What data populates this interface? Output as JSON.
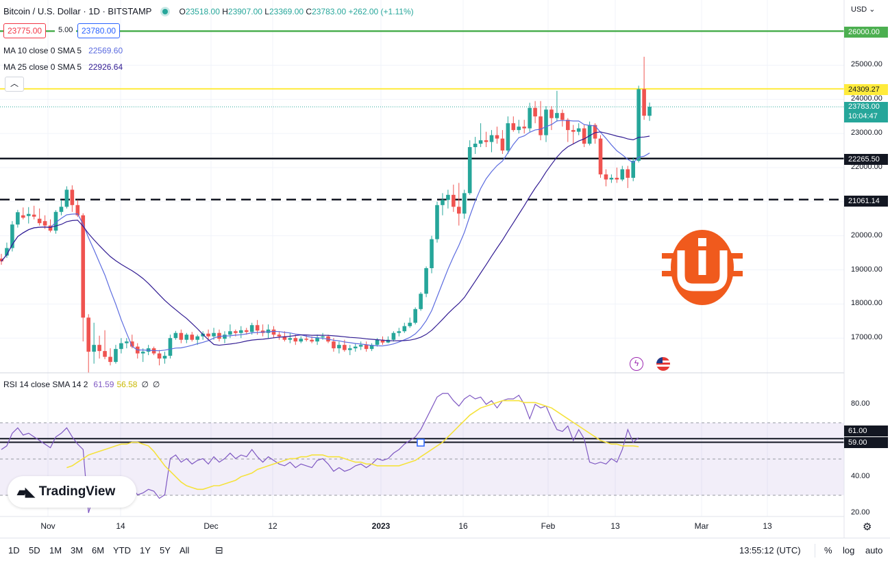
{
  "header": {
    "title": "Bitcoin / U.S. Dollar · 1D · BITSTAMP",
    "open_label": "O",
    "open": "23518.00",
    "high_label": "H",
    "high": "23907.00",
    "low_label": "L",
    "low": "23369.00",
    "close_label": "C",
    "close": "23783.00",
    "change": "+262.00 (+1.11%)"
  },
  "trade": {
    "sell": "23775.00",
    "spread": "5.00",
    "buy": "23780.00"
  },
  "indicators": {
    "ma10_label": "MA 10 close 0 SMA 5",
    "ma10_value": "22569.60",
    "ma25_label": "MA 25 close 0 SMA 5",
    "ma25_value": "22926.64",
    "rsi_label": "RSI 14 close SMA 14 2",
    "rsi_value": "61.59",
    "rsi_sma_value": "56.58",
    "rsi_extra1": "∅",
    "rsi_extra2": "∅"
  },
  "currency": "USD",
  "price_labels": {
    "level_26000": "26000.00",
    "level_24309": "24309.27",
    "last_price": "23783.00",
    "countdown": "10:04:47",
    "level_22265": "22265.50",
    "level_21061": "21061.14",
    "rsi_61": "61.00",
    "rsi_59": "59.00"
  },
  "colors": {
    "up": "#26a69a",
    "down": "#ef5350",
    "ma_fast": "#5b6bdf",
    "ma_slow": "#311b92",
    "resistance_green": "#4caf50",
    "resistance_yellow": "#ffeb3b",
    "rsi_line": "#7e57c2",
    "rsi_sma": "#f5e23c"
  },
  "timeframes": [
    "1D",
    "5D",
    "1M",
    "3M",
    "6M",
    "YTD",
    "1Y",
    "5Y",
    "All"
  ],
  "clock": "13:55:12 (UTC)",
  "bottom_right": {
    "percent": "%",
    "log": "log",
    "auto": "auto"
  },
  "branding": "TradingView",
  "chart_data": [
    {
      "type": "candlestick",
      "title": "Bitcoin / U.S. Dollar · 1D · BITSTAMP",
      "y_axis_ticks": [
        "25000.00",
        "24000.00",
        "23000.00",
        "22000.00",
        "20000.00",
        "19000.00",
        "18000.00",
        "17000.00"
      ],
      "x_axis_ticks": [
        "Nov",
        "14",
        "Dec",
        "12",
        "2023",
        "16",
        "Feb",
        "13",
        "Mar",
        "13"
      ],
      "ylim": [
        16000,
        26900
      ],
      "horizontal_levels": [
        {
          "value": 26000,
          "style": "solid",
          "color": "green"
        },
        {
          "value": 24309.27,
          "style": "solid",
          "color": "yellow"
        },
        {
          "value": 22265.5,
          "style": "solid",
          "color": "black"
        },
        {
          "value": 21061.14,
          "style": "dashed",
          "color": "black"
        }
      ],
      "candles": [
        [
          19330,
          19470,
          19150,
          19250
        ],
        [
          19420,
          19800,
          19350,
          19640
        ],
        [
          19640,
          20430,
          19540,
          20330
        ],
        [
          20330,
          20760,
          20240,
          20690
        ],
        [
          20600,
          20830,
          20480,
          20530
        ],
        [
          20580,
          20840,
          20360,
          20640
        ],
        [
          20620,
          20880,
          20480,
          20560
        ],
        [
          20500,
          20800,
          20300,
          20370
        ],
        [
          20430,
          20600,
          20200,
          20300
        ],
        [
          20300,
          20480,
          20100,
          20150
        ],
        [
          20150,
          20750,
          20060,
          20700
        ],
        [
          20700,
          21050,
          20600,
          20850
        ],
        [
          20850,
          21450,
          20800,
          21350
        ],
        [
          21350,
          21480,
          20700,
          20900
        ],
        [
          20900,
          21050,
          20550,
          20600
        ],
        [
          20600,
          20660,
          16900,
          17600
        ],
        [
          17600,
          17700,
          15650,
          16600
        ],
        [
          16600,
          17450,
          16250,
          16800
        ],
        [
          16800,
          17070,
          16400,
          16620
        ],
        [
          16620,
          17230,
          16380,
          16450
        ],
        [
          16450,
          16700,
          16200,
          16300
        ],
        [
          16300,
          16800,
          16250,
          16680
        ],
        [
          16680,
          17000,
          16550,
          16850
        ],
        [
          16850,
          17000,
          16700,
          16900
        ],
        [
          16900,
          17100,
          16700,
          16750
        ],
        [
          16750,
          16850,
          16400,
          16550
        ],
        [
          16550,
          16700,
          16300,
          16600
        ],
        [
          16600,
          16800,
          16500,
          16700
        ],
        [
          16700,
          16750,
          16500,
          16550
        ],
        [
          16550,
          16650,
          16200,
          16400
        ],
        [
          16400,
          16600,
          16250,
          16480
        ],
        [
          16480,
          17100,
          16400,
          17000
        ],
        [
          17000,
          17210,
          16950,
          17150
        ],
        [
          17150,
          17250,
          16850,
          16950
        ],
        [
          16950,
          17150,
          16850,
          17100
        ],
        [
          17100,
          17180,
          16900,
          16950
        ],
        [
          16950,
          17100,
          16800,
          17050
        ],
        [
          17050,
          17200,
          16950,
          17130
        ],
        [
          17130,
          17250,
          16950,
          17050
        ],
        [
          17050,
          17300,
          16950,
          17150
        ],
        [
          17150,
          17250,
          16900,
          16980
        ],
        [
          16980,
          17200,
          16850,
          17100
        ],
        [
          17100,
          17400,
          17000,
          17200
        ],
        [
          17200,
          17250,
          17050,
          17150
        ],
        [
          17150,
          17350,
          17000,
          17230
        ],
        [
          17230,
          17300,
          17100,
          17180
        ],
        [
          17180,
          17450,
          17100,
          17380
        ],
        [
          17380,
          17530,
          17100,
          17220
        ],
        [
          17220,
          17400,
          17050,
          17150
        ],
        [
          17150,
          17400,
          17000,
          17250
        ],
        [
          17250,
          17350,
          17000,
          17100
        ],
        [
          17100,
          17200,
          16950,
          17050
        ],
        [
          17050,
          17200,
          16900,
          16950
        ],
        [
          16950,
          17150,
          16850,
          17000
        ],
        [
          17000,
          17100,
          16800,
          16900
        ],
        [
          16900,
          17050,
          16850,
          16980
        ],
        [
          16980,
          17100,
          16900,
          16950
        ],
        [
          16950,
          17050,
          16850,
          16900
        ],
        [
          16900,
          17100,
          16800,
          17020
        ],
        [
          17020,
          17150,
          16950,
          17050
        ],
        [
          17050,
          17100,
          16850,
          16900
        ],
        [
          16900,
          17000,
          16600,
          16700
        ],
        [
          16700,
          16900,
          16550,
          16800
        ],
        [
          16800,
          16950,
          16600,
          16650
        ],
        [
          16650,
          16800,
          16500,
          16700
        ],
        [
          16700,
          16850,
          16600,
          16750
        ],
        [
          16750,
          16900,
          16650,
          16800
        ],
        [
          16800,
          16900,
          16600,
          16680
        ],
        [
          16680,
          16850,
          16620,
          16800
        ],
        [
          16800,
          17000,
          16750,
          16950
        ],
        [
          16950,
          17050,
          16800,
          16870
        ],
        [
          16870,
          17050,
          16850,
          16950
        ],
        [
          16950,
          17200,
          16900,
          17150
        ],
        [
          17150,
          17300,
          17050,
          17200
        ],
        [
          17200,
          17450,
          17150,
          17350
        ],
        [
          17350,
          17600,
          17300,
          17450
        ],
        [
          17450,
          17900,
          17400,
          17850
        ],
        [
          17850,
          18350,
          17800,
          18300
        ],
        [
          18300,
          19100,
          18200,
          19050
        ],
        [
          19050,
          20000,
          18900,
          19900
        ],
        [
          19900,
          21000,
          19800,
          20900
        ],
        [
          20900,
          21250,
          20600,
          21050
        ],
        [
          21050,
          21350,
          20800,
          21200
        ],
        [
          21200,
          21500,
          20700,
          20850
        ],
        [
          20850,
          21550,
          20300,
          20650
        ],
        [
          20650,
          21350,
          20500,
          21250
        ],
        [
          21250,
          22800,
          21200,
          22600
        ],
        [
          22600,
          22900,
          22400,
          22700
        ],
        [
          22700,
          23300,
          22600,
          22800
        ],
        [
          22800,
          23050,
          22600,
          22750
        ],
        [
          22750,
          23100,
          22450,
          22950
        ],
        [
          22950,
          23200,
          22700,
          22850
        ],
        [
          22850,
          23100,
          22400,
          22500
        ],
        [
          22500,
          23500,
          22400,
          23300
        ],
        [
          23300,
          23500,
          23050,
          23100
        ],
        [
          23100,
          23400,
          23000,
          23200
        ],
        [
          23200,
          23400,
          23000,
          23150
        ],
        [
          23150,
          23900,
          23050,
          23750
        ],
        [
          23750,
          23950,
          23300,
          23500
        ],
        [
          23500,
          23950,
          22800,
          22950
        ],
        [
          22950,
          23800,
          22750,
          23700
        ],
        [
          23700,
          23800,
          23100,
          23450
        ],
        [
          23450,
          24250,
          23350,
          23600
        ],
        [
          23600,
          23700,
          23200,
          23400
        ],
        [
          23400,
          23450,
          22750,
          23100
        ],
        [
          23100,
          23250,
          22700,
          23050
        ],
        [
          23050,
          23300,
          22950,
          23150
        ],
        [
          23150,
          23250,
          22600,
          22700
        ],
        [
          22700,
          23350,
          22650,
          23250
        ],
        [
          23250,
          23300,
          22700,
          22850
        ],
        [
          22850,
          22950,
          21700,
          21800
        ],
        [
          21800,
          21950,
          21450,
          21650
        ],
        [
          21650,
          21800,
          21550,
          21700
        ],
        [
          21700,
          22000,
          21550,
          21650
        ],
        [
          21650,
          22050,
          21600,
          21950
        ],
        [
          21950,
          22050,
          21400,
          21700
        ],
        [
          21700,
          22300,
          21600,
          22200
        ],
        [
          22200,
          24400,
          22150,
          24300
        ],
        [
          24300,
          25250,
          23400,
          23520
        ],
        [
          23518,
          23907,
          23369,
          23783
        ]
      ]
    },
    {
      "type": "line",
      "title": "RSI 14 close SMA 14 2",
      "y_axis_ticks": [
        "80.00",
        "40.00",
        "20.00"
      ],
      "ylim": [
        15,
        95
      ],
      "band": [
        30,
        70
      ],
      "horizontal_levels": [
        61,
        59
      ],
      "series": [
        {
          "name": "RSI",
          "values": [
            55,
            57,
            64,
            67,
            63,
            64,
            62,
            60,
            58,
            56,
            62,
            64,
            67,
            62,
            58,
            55,
            20,
            30,
            33,
            31,
            27,
            30,
            34,
            36,
            34,
            30,
            31,
            33,
            32,
            28,
            30,
            50,
            52,
            48,
            50,
            47,
            49,
            50,
            47,
            51,
            48,
            50,
            53,
            50,
            52,
            51,
            55,
            51,
            48,
            51,
            49,
            47,
            46,
            48,
            45,
            47,
            46,
            45,
            49,
            50,
            47,
            43,
            45,
            43,
            44,
            46,
            47,
            45,
            47,
            50,
            49,
            50,
            53,
            55,
            58,
            60,
            62,
            66,
            72,
            78,
            84,
            86,
            86,
            82,
            79,
            83,
            85,
            83,
            84,
            80,
            82,
            78,
            82,
            83,
            83,
            85,
            80,
            72,
            80,
            78,
            79,
            72,
            66,
            65,
            68,
            60,
            66,
            61,
            48,
            47,
            48,
            47,
            50,
            48,
            55,
            66,
            59,
            61.59
          ]
        },
        {
          "name": "RSI SMA",
          "values": [
            45,
            46,
            48,
            50,
            52,
            53,
            54,
            55,
            56,
            57,
            58,
            58,
            59,
            59,
            58,
            57,
            54,
            50,
            46,
            43,
            40,
            37,
            35,
            34,
            33,
            33,
            34,
            35,
            35,
            36,
            37,
            38,
            40,
            41,
            42,
            44,
            45,
            46,
            47,
            48,
            49,
            50,
            50,
            51,
            51,
            52,
            52,
            52,
            51,
            51,
            51,
            50,
            49,
            48,
            48,
            47,
            47,
            46,
            46,
            46,
            46,
            46,
            47,
            48,
            49,
            51,
            53,
            55,
            57,
            59,
            62,
            65,
            68,
            71,
            74,
            76,
            78,
            79,
            80,
            81,
            82,
            82,
            82,
            82,
            81,
            81,
            81,
            80,
            79,
            78,
            76,
            74,
            72,
            70,
            68,
            66,
            64,
            62,
            60,
            59,
            58,
            58,
            57,
            57,
            57,
            56.58
          ]
        }
      ]
    }
  ]
}
